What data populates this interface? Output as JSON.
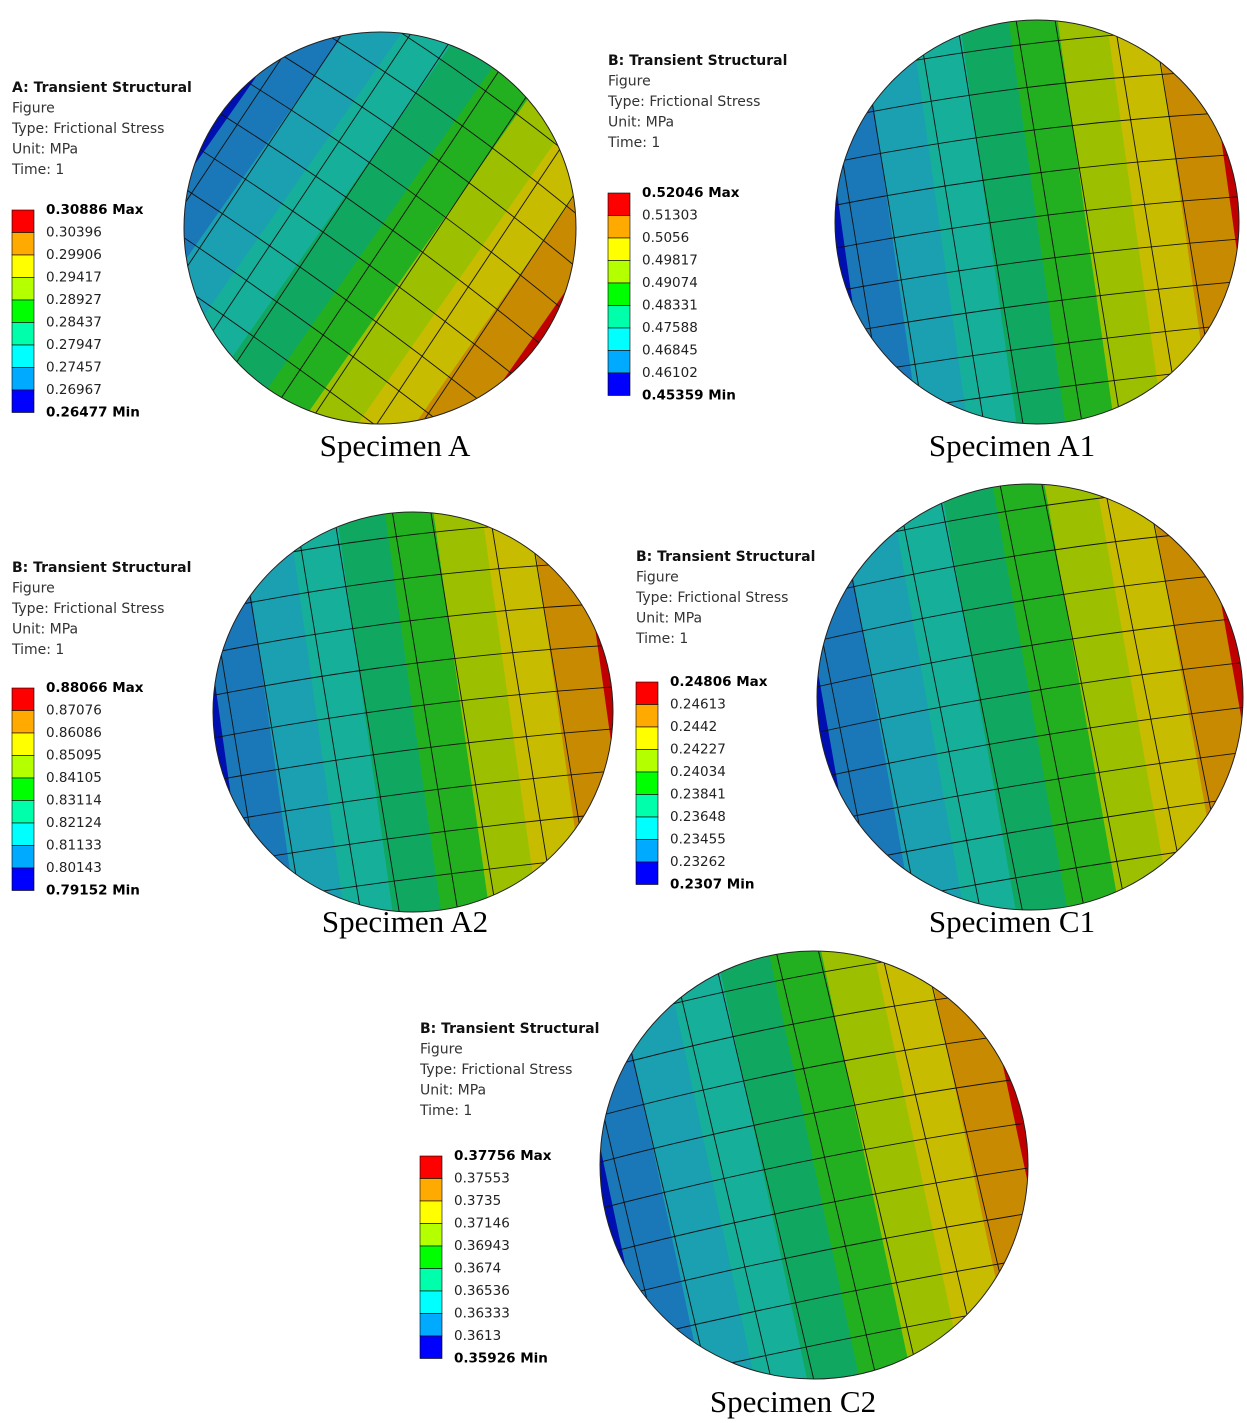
{
  "panels": [
    {
      "header": [
        "A: Transient Structural",
        "Figure",
        "Type: Frictional Stress",
        "Unit: MPa",
        "Time: 1"
      ],
      "legend": [
        "0.30886 Max",
        "0.30396",
        "0.29906",
        "0.29417",
        "0.28927",
        "0.28437",
        "0.27947",
        "0.27457",
        "0.26967",
        "0.26477 Min"
      ],
      "caption": "Specimen A"
    },
    {
      "header": [
        "B: Transient Structural",
        "Figure",
        "Type: Frictional Stress",
        "Unit: MPa",
        "Time: 1"
      ],
      "legend": [
        "0.52046 Max",
        "0.51303",
        "0.5056",
        "0.49817",
        "0.49074",
        "0.48331",
        "0.47588",
        "0.46845",
        "0.46102",
        "0.45359 Min"
      ],
      "caption": "Specimen A1"
    },
    {
      "header": [
        "B: Transient Structural",
        "Figure",
        "Type: Frictional Stress",
        "Unit: MPa",
        "Time: 1"
      ],
      "legend": [
        "0.88066 Max",
        "0.87076",
        "0.86086",
        "0.85095",
        "0.84105",
        "0.83114",
        "0.82124",
        "0.81133",
        "0.80143",
        "0.79152 Min"
      ],
      "caption": "Specimen A2"
    },
    {
      "header": [
        "B: Transient Structural",
        "Figure",
        "Type: Frictional Stress",
        "Unit: MPa",
        "Time: 1"
      ],
      "legend": [
        "0.24806 Max",
        "0.24613",
        "0.2442",
        "0.24227",
        "0.24034",
        "0.23841",
        "0.23648",
        "0.23455",
        "0.23262",
        "0.2307 Min"
      ],
      "caption": "Specimen C1"
    },
    {
      "header": [
        "B: Transient Structural",
        "Figure",
        "Type: Frictional Stress",
        "Unit: MPa",
        "Time: 1"
      ],
      "legend": [
        "0.37756 Max",
        "0.37553",
        "0.3735",
        "0.37146",
        "0.36943",
        "0.3674",
        "0.36536",
        "0.36333",
        "0.3613",
        "0.35926 Min"
      ],
      "caption": "Specimen C2"
    }
  ]
}
